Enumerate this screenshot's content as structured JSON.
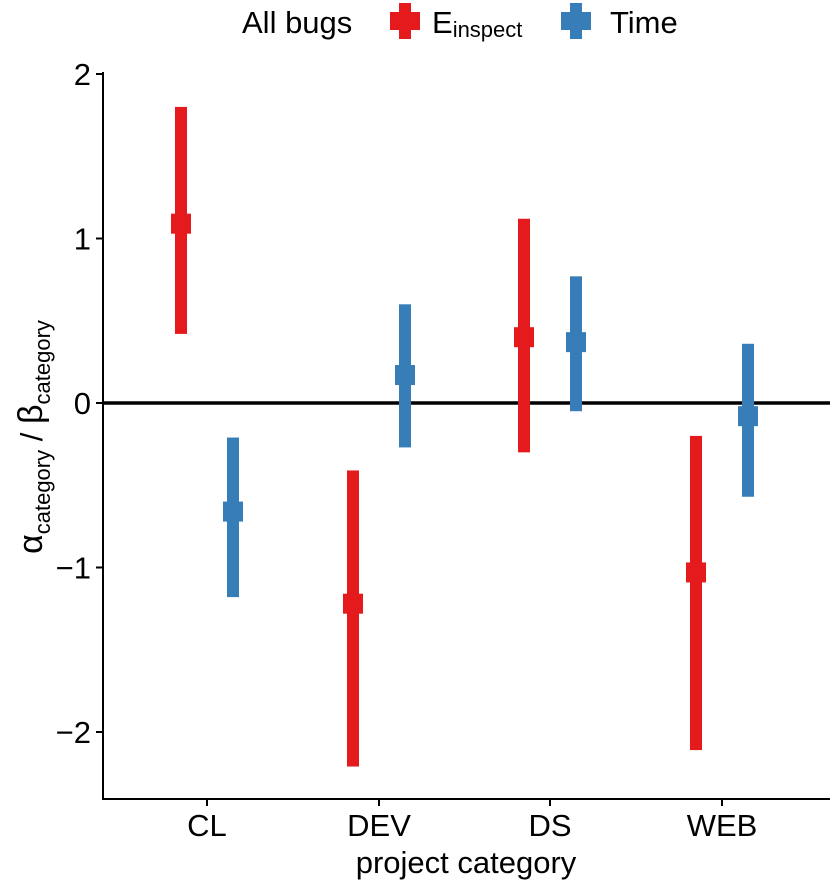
{
  "chart_data": {
    "type": "errorbar",
    "title": "",
    "legend": {
      "title": "All bugs",
      "entries": [
        {
          "main": "E",
          "sub": "inspect",
          "color": "#E41A1C"
        },
        {
          "main": "Time",
          "sub": "",
          "color": "#377EB8"
        }
      ],
      "position": "top"
    },
    "xlabel": "project category",
    "ylabel": {
      "alpha": "α",
      "alpha_sub": "category",
      "sep": " / ",
      "beta": "β",
      "beta_sub": "category"
    },
    "categories": [
      "CL",
      "DEV",
      "DS",
      "WEB"
    ],
    "yticks": [
      2,
      1,
      0,
      -1,
      -2
    ],
    "ytick_labels": [
      "2",
      "1",
      "0",
      "−1",
      "−2"
    ],
    "ylim": [
      -2.4,
      2.0
    ],
    "reference_line": 0,
    "series": [
      {
        "name": "E_inspect",
        "color": "#E41A1C",
        "points": [
          {
            "category": "CL",
            "estimate": 1.09,
            "lower": 0.42,
            "upper": 1.8
          },
          {
            "category": "DEV",
            "estimate": -1.22,
            "lower": -2.21,
            "upper": -0.41
          },
          {
            "category": "DS",
            "estimate": 0.4,
            "lower": -0.3,
            "upper": 1.12
          },
          {
            "category": "WEB",
            "estimate": -1.03,
            "lower": -2.11,
            "upper": -0.2
          }
        ]
      },
      {
        "name": "Time",
        "color": "#377EB8",
        "points": [
          {
            "category": "CL",
            "estimate": -0.66,
            "lower": -1.18,
            "upper": -0.21
          },
          {
            "category": "DEV",
            "estimate": 0.17,
            "lower": -0.27,
            "upper": 0.6
          },
          {
            "category": "DS",
            "estimate": 0.37,
            "lower": -0.05,
            "upper": 0.77
          },
          {
            "category": "WEB",
            "estimate": -0.08,
            "lower": -0.57,
            "upper": 0.36
          }
        ]
      }
    ]
  }
}
